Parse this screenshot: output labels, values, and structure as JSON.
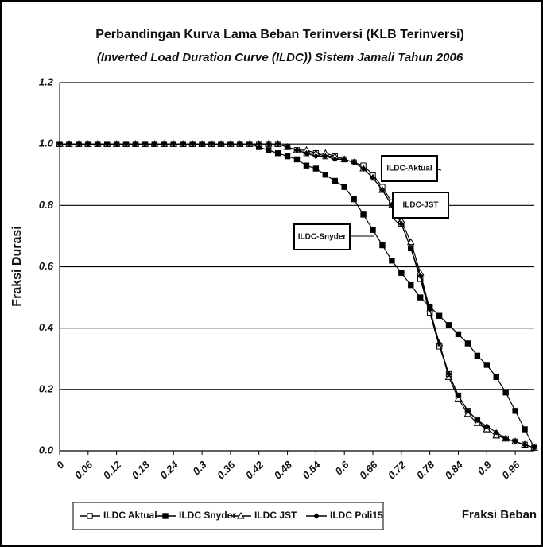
{
  "chart_data": {
    "type": "line",
    "title": "Perbandingan Kurva Lama Beban Terinversi (KLB Terinversi)",
    "subtitle": "(Inverted Load Duration Curve (ILDC)) Sistem Jamali Tahun 2006",
    "y_label": "Fraksi Durasi",
    "x_label": "Fraksi Beban",
    "x": [
      0,
      0.02,
      0.04,
      0.06,
      0.08,
      0.1,
      0.12,
      0.14,
      0.16,
      0.18,
      0.2,
      0.22,
      0.24,
      0.26,
      0.28,
      0.3,
      0.32,
      0.34,
      0.36,
      0.38,
      0.4,
      0.42,
      0.44,
      0.46,
      0.48,
      0.5,
      0.52,
      0.54,
      0.56,
      0.58,
      0.6,
      0.62,
      0.64,
      0.66,
      0.68,
      0.7,
      0.72,
      0.74,
      0.76,
      0.78,
      0.8,
      0.82,
      0.84,
      0.86,
      0.88,
      0.9,
      0.92,
      0.94,
      0.96,
      0.98,
      1
    ],
    "xlim": [
      0,
      1
    ],
    "xticks": [
      0,
      0.06,
      0.12,
      0.18,
      0.24,
      0.3,
      0.36,
      0.42,
      0.48,
      0.54,
      0.6,
      0.66,
      0.72,
      0.78,
      0.84,
      0.9,
      0.96
    ],
    "ylim": [
      0,
      1.2
    ],
    "yticks": [
      {
        "value": 0,
        "label": "0.0"
      },
      0.2,
      0.4,
      0.6,
      0.8,
      {
        "value": 1,
        "label": "1.0"
      },
      1.2
    ],
    "grid": true,
    "series": [
      {
        "name": "ILDC Aktual",
        "color": "#000000",
        "marker": "square-open",
        "values": [
          1,
          1,
          1,
          1,
          1,
          1,
          1,
          1,
          1,
          1,
          1,
          1,
          1,
          1,
          1,
          1,
          1,
          1,
          1,
          1,
          1,
          1,
          1,
          1,
          0.99,
          0.98,
          0.97,
          0.97,
          0.96,
          0.96,
          0.95,
          0.94,
          0.93,
          0.9,
          0.86,
          0.81,
          0.74,
          0.66,
          0.56,
          0.45,
          0.34,
          0.25,
          0.18,
          0.13,
          0.1,
          0.07,
          0.05,
          0.04,
          0.03,
          0.02,
          0.01
        ]
      },
      {
        "name": "ILDC Snyder",
        "color": "#000000",
        "marker": "square-filled",
        "values": [
          1,
          1,
          1,
          1,
          1,
          1,
          1,
          1,
          1,
          1,
          1,
          1,
          1,
          1,
          1,
          1,
          1,
          1,
          1,
          1,
          1,
          0.99,
          0.98,
          0.97,
          0.96,
          0.95,
          0.93,
          0.92,
          0.9,
          0.88,
          0.86,
          0.82,
          0.77,
          0.72,
          0.67,
          0.62,
          0.58,
          0.54,
          0.5,
          0.47,
          0.44,
          0.41,
          0.38,
          0.35,
          0.31,
          0.28,
          0.24,
          0.19,
          0.13,
          0.07,
          0.01
        ]
      },
      {
        "name": "ILDC JST",
        "color": "#000000",
        "marker": "triangle-open",
        "values": [
          1,
          1,
          1,
          1,
          1,
          1,
          1,
          1,
          1,
          1,
          1,
          1,
          1,
          1,
          1,
          1,
          1,
          1,
          1,
          1,
          1,
          1,
          1,
          1,
          0.99,
          0.98,
          0.98,
          0.97,
          0.97,
          0.96,
          0.95,
          0.94,
          0.92,
          0.89,
          0.85,
          0.8,
          0.75,
          0.68,
          0.58,
          0.46,
          0.35,
          0.24,
          0.17,
          0.12,
          0.09,
          0.07,
          0.05,
          0.04,
          0.03,
          0.02,
          0.01
        ]
      },
      {
        "name": "ILDC Poli15",
        "color": "#000000",
        "marker": "diamond-filled",
        "values": [
          1,
          1,
          1,
          1,
          1,
          1,
          1,
          1,
          1,
          1,
          1,
          1,
          1,
          1,
          1,
          1,
          1,
          1,
          1,
          1,
          1,
          1,
          1,
          1,
          0.99,
          0.98,
          0.97,
          0.96,
          0.96,
          0.95,
          0.95,
          0.94,
          0.92,
          0.89,
          0.85,
          0.8,
          0.74,
          0.66,
          0.57,
          0.46,
          0.35,
          0.25,
          0.18,
          0.13,
          0.1,
          0.08,
          0.06,
          0.04,
          0.03,
          0.02,
          0.01
        ]
      }
    ],
    "annotations": [
      "ILDC-Aktual",
      "ILDC-JST",
      "ILDC-Snyder"
    ]
  }
}
